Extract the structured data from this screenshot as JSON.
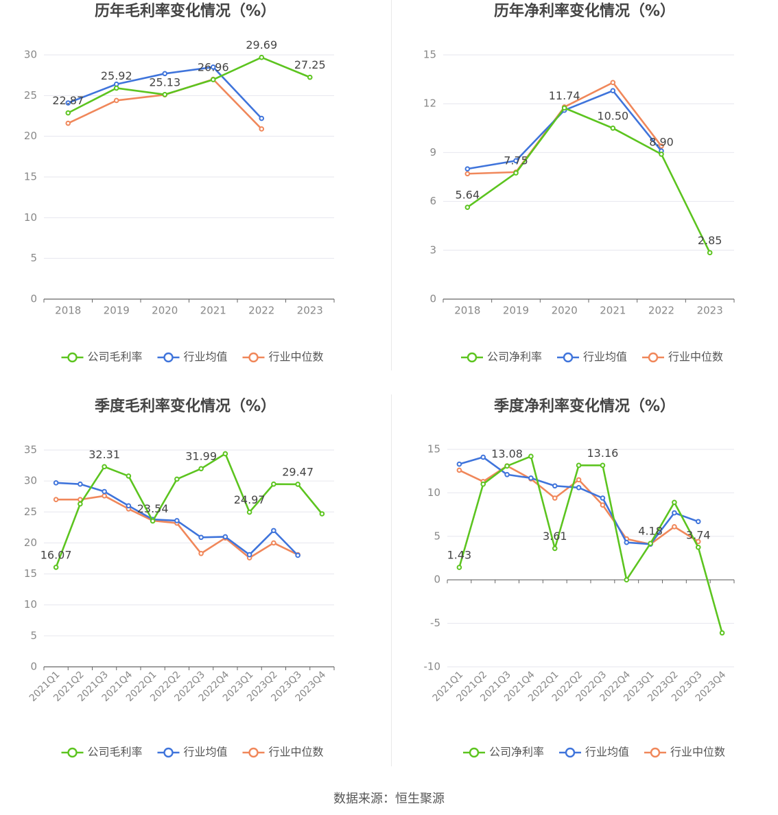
{
  "colors": {
    "company": "#5cc41f",
    "industry_avg": "#3f74db",
    "industry_median": "#f0875a",
    "grid": "#e6e6ee",
    "axis": "#666666",
    "tick_text": "#888888",
    "title_text": "#444444"
  },
  "source_text": "数据来源：恒生聚源",
  "chart_data": [
    {
      "type": "line",
      "title": "历年毛利率变化情况（%）",
      "categories": [
        "2018",
        "2019",
        "2020",
        "2021",
        "2022",
        "2023"
      ],
      "ylim": [
        0,
        30
      ],
      "yticks": [
        0,
        5,
        10,
        15,
        20,
        25,
        30
      ],
      "x_label_rotate": false,
      "series": [
        {
          "name": "公司毛利率",
          "key": "company",
          "values": [
            22.87,
            25.92,
            25.13,
            26.96,
            29.69,
            27.25
          ]
        },
        {
          "name": "行业均值",
          "key": "industry_avg",
          "values": [
            24.1,
            26.4,
            27.7,
            28.5,
            22.2,
            null
          ]
        },
        {
          "name": "行业中位数",
          "key": "industry_median",
          "values": [
            21.6,
            24.4,
            25.1,
            27.0,
            20.9,
            null
          ]
        }
      ],
      "labels": [
        {
          "i": 0,
          "text": "22.87"
        },
        {
          "i": 1,
          "text": "25.92"
        },
        {
          "i": 2,
          "text": "25.13"
        },
        {
          "i": 3,
          "text": "26.96"
        },
        {
          "i": 4,
          "text": "29.69"
        },
        {
          "i": 5,
          "text": "27.25"
        }
      ]
    },
    {
      "type": "line",
      "title": "历年净利率变化情况（%）",
      "categories": [
        "2018",
        "2019",
        "2020",
        "2021",
        "2022",
        "2023"
      ],
      "ylim": [
        0,
        15
      ],
      "yticks": [
        0,
        3,
        6,
        9,
        12,
        15
      ],
      "x_label_rotate": false,
      "series": [
        {
          "name": "公司净利率",
          "key": "company",
          "values": [
            5.64,
            7.75,
            11.74,
            10.5,
            8.9,
            2.85
          ]
        },
        {
          "name": "行业均值",
          "key": "industry_avg",
          "values": [
            8.0,
            8.5,
            11.6,
            12.8,
            9.1,
            null
          ]
        },
        {
          "name": "行业中位数",
          "key": "industry_median",
          "values": [
            7.7,
            7.8,
            11.8,
            13.3,
            9.4,
            null
          ]
        }
      ],
      "labels": [
        {
          "i": 0,
          "text": "5.64"
        },
        {
          "i": 1,
          "text": "7.75"
        },
        {
          "i": 2,
          "text": "11.74"
        },
        {
          "i": 3,
          "text": "10.50"
        },
        {
          "i": 4,
          "text": "8.90"
        },
        {
          "i": 5,
          "text": "2.85"
        }
      ]
    },
    {
      "type": "line",
      "title": "季度毛利率变化情况（%）",
      "categories": [
        "2021Q1",
        "2021Q2",
        "2021Q3",
        "2021Q4",
        "2022Q1",
        "2022Q2",
        "2022Q3",
        "2022Q4",
        "2023Q1",
        "2023Q2",
        "2023Q3",
        "2023Q4"
      ],
      "ylim": [
        0,
        35
      ],
      "yticks": [
        0,
        5,
        10,
        15,
        20,
        25,
        30,
        35
      ],
      "x_label_rotate": true,
      "series": [
        {
          "name": "公司毛利率",
          "key": "company",
          "values": [
            16.07,
            26.3,
            32.31,
            30.8,
            23.54,
            30.3,
            31.99,
            34.4,
            24.97,
            29.5,
            29.47,
            24.7
          ]
        },
        {
          "name": "行业均值",
          "key": "industry_avg",
          "values": [
            29.7,
            29.5,
            28.3,
            26.0,
            23.8,
            23.6,
            20.9,
            21.0,
            18.1,
            22.0,
            18.0,
            null
          ]
        },
        {
          "name": "行业中位数",
          "key": "industry_median",
          "values": [
            27.0,
            27.0,
            27.6,
            25.5,
            23.6,
            23.2,
            18.3,
            20.8,
            17.6,
            20.0,
            18.1,
            null
          ]
        }
      ],
      "labels": [
        {
          "i": 0,
          "text": "16.07"
        },
        {
          "i": 2,
          "text": "32.31"
        },
        {
          "i": 4,
          "text": "23.54"
        },
        {
          "i": 6,
          "text": "31.99"
        },
        {
          "i": 8,
          "text": "24.97"
        },
        {
          "i": 10,
          "text": "29.47"
        }
      ]
    },
    {
      "type": "line",
      "title": "季度净利率变化情况（%）",
      "categories": [
        "2021Q1",
        "2021Q2",
        "2021Q3",
        "2021Q4",
        "2022Q1",
        "2022Q2",
        "2022Q3",
        "2022Q4",
        "2023Q1",
        "2023Q2",
        "2023Q3",
        "2023Q4"
      ],
      "ylim": [
        -10,
        15
      ],
      "yticks": [
        -10,
        -5,
        0,
        5,
        10,
        15
      ],
      "x_label_rotate": true,
      "series": [
        {
          "name": "公司净利率",
          "key": "company",
          "values": [
            1.43,
            11.0,
            13.08,
            14.2,
            3.61,
            13.16,
            13.16,
            0.0,
            4.18,
            8.9,
            3.74,
            -6.1
          ]
        },
        {
          "name": "行业均值",
          "key": "industry_avg",
          "values": [
            13.3,
            14.1,
            12.1,
            11.7,
            10.8,
            10.6,
            9.4,
            4.3,
            4.1,
            7.7,
            6.7,
            null
          ]
        },
        {
          "name": "行业中位数",
          "key": "industry_median",
          "values": [
            12.6,
            11.3,
            13.1,
            11.6,
            9.4,
            11.5,
            8.6,
            4.7,
            4.1,
            6.1,
            4.4,
            null
          ]
        }
      ],
      "labels": [
        {
          "i": 0,
          "text": "1.43"
        },
        {
          "i": 2,
          "text": "13.08"
        },
        {
          "i": 4,
          "text": "3.61"
        },
        {
          "i": 6,
          "text": "13.16"
        },
        {
          "i": 8,
          "text": "4.18"
        },
        {
          "i": 10,
          "text": "3.74"
        }
      ]
    }
  ]
}
